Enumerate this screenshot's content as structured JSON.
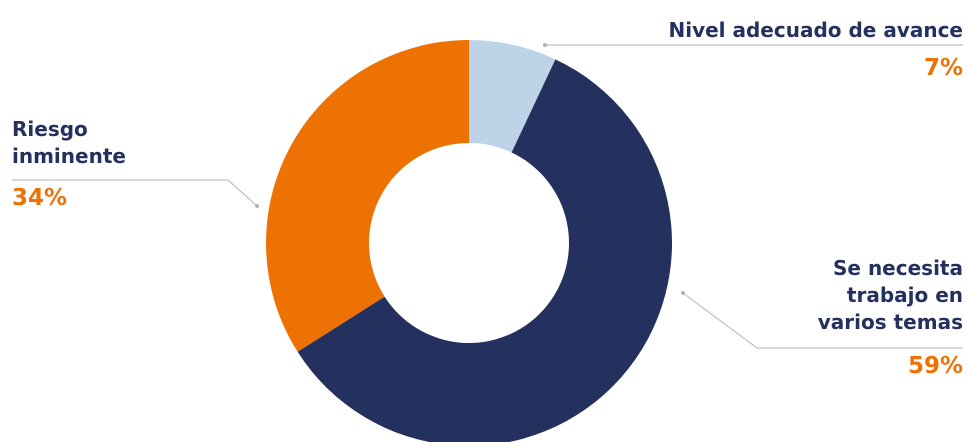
{
  "chart_data": {
    "type": "pie",
    "donut": true,
    "start_angle_deg": 0,
    "direction": "clockwise",
    "colors": {
      "category_text": "#24305e",
      "percent_text": "#ed7203",
      "leader_line": "#b3b3b3"
    },
    "slices": [
      {
        "label": "Nivel adecuado de avance",
        "value": 7,
        "display": "7%",
        "color": "#bdd4e8",
        "label_lines": [
          "Nivel adecuado de avance"
        ]
      },
      {
        "label": "Se necesita trabajo en varios temas",
        "value": 59,
        "display": "59%",
        "color": "#24305e",
        "label_lines": [
          "Se necesita",
          "trabajo en",
          "varios temas"
        ]
      },
      {
        "label": "Riesgo inminente",
        "value": 34,
        "display": "34%",
        "color": "#ed7203",
        "label_lines": [
          "Riesgo",
          "inminente"
        ]
      }
    ]
  }
}
